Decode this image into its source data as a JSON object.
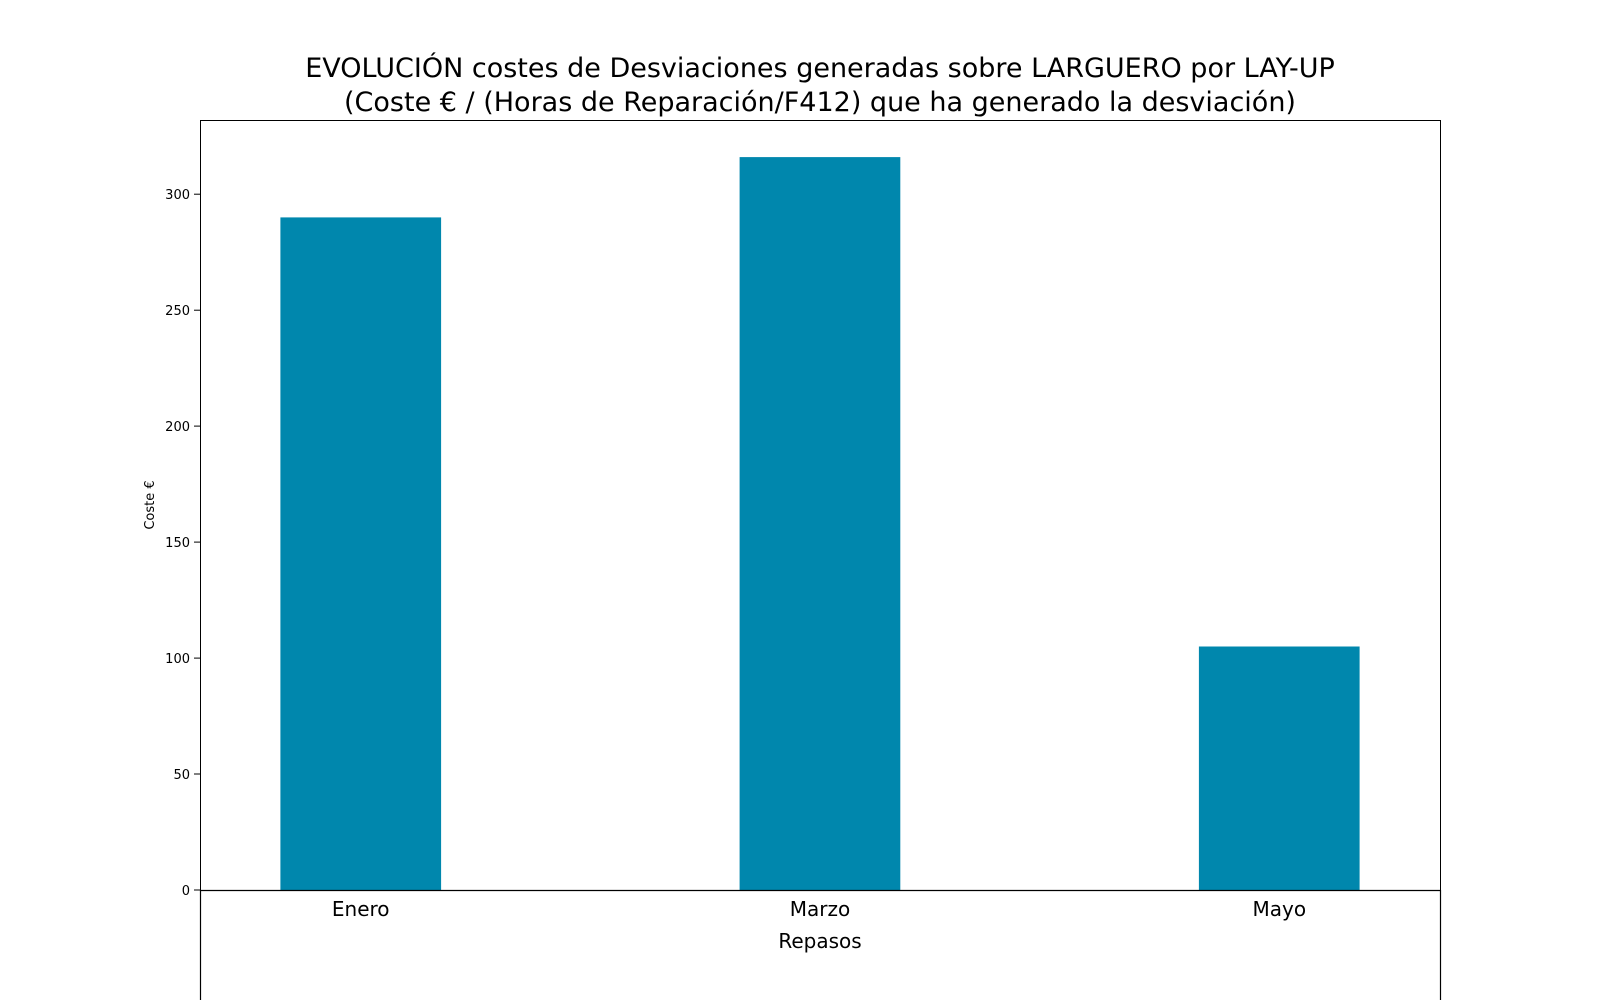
{
  "chart_data": {
    "type": "bar",
    "title": "EVOLUCIÓN costes de Desviaciones  generadas  sobre LARGUERO por LAY-UP",
    "subtitle": "(Coste € / (Horas de Reparación/F412) que ha generado la desviación)",
    "xlabel": "Repasos",
    "ylabel": "Coste €",
    "categories": [
      "Enero",
      "Marzo",
      "Mayo"
    ],
    "values": [
      290,
      316,
      105
    ],
    "ylim": [
      0,
      332
    ],
    "yticks": [
      0,
      50,
      100,
      150,
      200,
      250,
      300
    ],
    "grid": false,
    "legend": "none",
    "colors": {
      "bar": "#0087ad",
      "axis": "#000000",
      "background": "#ffffff"
    }
  }
}
